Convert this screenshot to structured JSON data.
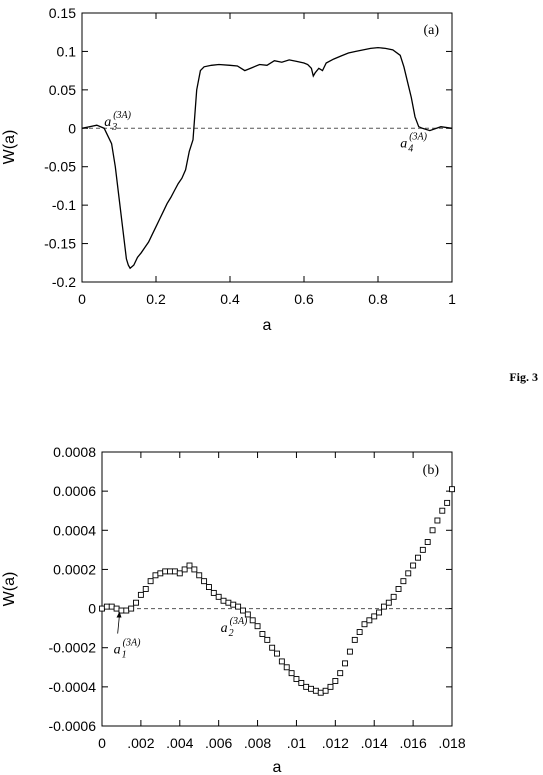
{
  "figure_caption": "Fig. 3",
  "chart_data": [
    {
      "type": "line",
      "panel_label": "(a)",
      "xlabel": "a",
      "ylabel": "W(a)",
      "xlim": [
        0,
        1
      ],
      "ylim": [
        -0.2,
        0.15
      ],
      "xticks": [
        0,
        0.2,
        0.4,
        0.6,
        0.8,
        1
      ],
      "xtick_labels": [
        "0",
        "0.2",
        "0.4",
        "0.6",
        "0.8",
        "1"
      ],
      "yticks": [
        -0.2,
        -0.15,
        -0.1,
        -0.05,
        0,
        0.05,
        0.1,
        0.15
      ],
      "ytick_labels": [
        "-0.2",
        "-0.15",
        "-0.1",
        "-0.05",
        "0",
        "0.05",
        "0.1",
        "0.15"
      ],
      "zero_line": true,
      "grid": false,
      "series": [
        {
          "style": "solid",
          "x": [
            0.0,
            0.02,
            0.04,
            0.06,
            0.08,
            0.09,
            0.1,
            0.11,
            0.12,
            0.125,
            0.13,
            0.14,
            0.15,
            0.16,
            0.17,
            0.18,
            0.19,
            0.2,
            0.21,
            0.22,
            0.23,
            0.24,
            0.25,
            0.26,
            0.27,
            0.28,
            0.29,
            0.3,
            0.31,
            0.32,
            0.33,
            0.35,
            0.37,
            0.4,
            0.42,
            0.44,
            0.46,
            0.48,
            0.5,
            0.52,
            0.54,
            0.56,
            0.58,
            0.6,
            0.61,
            0.62,
            0.625,
            0.63,
            0.64,
            0.65,
            0.66,
            0.68,
            0.7,
            0.72,
            0.74,
            0.76,
            0.78,
            0.8,
            0.82,
            0.84,
            0.86,
            0.87,
            0.88,
            0.89,
            0.9,
            0.91,
            0.92,
            0.94,
            0.97,
            1.0
          ],
          "y": [
            0.0,
            0.002,
            0.004,
            0.0,
            -0.02,
            -0.05,
            -0.09,
            -0.13,
            -0.17,
            -0.178,
            -0.182,
            -0.178,
            -0.168,
            -0.162,
            -0.155,
            -0.148,
            -0.138,
            -0.128,
            -0.118,
            -0.108,
            -0.098,
            -0.09,
            -0.081,
            -0.072,
            -0.065,
            -0.054,
            -0.03,
            -0.015,
            0.05,
            0.075,
            0.08,
            0.082,
            0.083,
            0.082,
            0.081,
            0.075,
            0.079,
            0.083,
            0.082,
            0.088,
            0.086,
            0.089,
            0.087,
            0.085,
            0.083,
            0.078,
            0.068,
            0.072,
            0.078,
            0.075,
            0.085,
            0.09,
            0.094,
            0.098,
            0.1,
            0.102,
            0.104,
            0.105,
            0.104,
            0.102,
            0.095,
            0.08,
            0.06,
            0.04,
            0.015,
            0.002,
            0.0,
            -0.003,
            0.002,
            0.0
          ]
        }
      ],
      "annotations": [
        {
          "text": "a",
          "sub": "3",
          "sup": "(3A)",
          "x": 0.06,
          "y": 0.003
        },
        {
          "text": "a",
          "sub": "4",
          "sup": "(3A)",
          "x": 0.86,
          "y": -0.025
        }
      ]
    },
    {
      "type": "scatter",
      "panel_label": "(b)",
      "xlabel": "a",
      "ylabel": "W(a)",
      "xlim": [
        0,
        0.018
      ],
      "ylim": [
        -0.0006,
        0.0008
      ],
      "xticks": [
        0,
        0.002,
        0.004,
        0.006,
        0.008,
        0.01,
        0.012,
        0.014,
        0.016,
        0.018
      ],
      "xtick_labels": [
        "0",
        ".002",
        ".004",
        ".006",
        ".008",
        ".01",
        ".012",
        ".014",
        ".016",
        ".018"
      ],
      "yticks": [
        -0.0006,
        -0.0004,
        -0.0002,
        0,
        0.0002,
        0.0004,
        0.0006,
        0.0008
      ],
      "ytick_labels": [
        "-0.0006",
        "-0.0004",
        "-0.0002",
        "0",
        "0.0002",
        "0.0004",
        "0.0006",
        "0.0008"
      ],
      "zero_line": true,
      "grid": false,
      "marker": "open-square",
      "series": [
        {
          "x": [
            0.0,
            0.00025,
            0.0005,
            0.00075,
            0.001,
            0.00125,
            0.0015,
            0.00175,
            0.002,
            0.00225,
            0.0025,
            0.00275,
            0.003,
            0.00325,
            0.0035,
            0.00375,
            0.004,
            0.00425,
            0.0045,
            0.00475,
            0.005,
            0.00525,
            0.0055,
            0.00575,
            0.006,
            0.00625,
            0.0065,
            0.00675,
            0.007,
            0.00725,
            0.0075,
            0.00775,
            0.008,
            0.00825,
            0.0085,
            0.00875,
            0.009,
            0.00925,
            0.0095,
            0.00975,
            0.01,
            0.01025,
            0.0105,
            0.01075,
            0.011,
            0.01125,
            0.0115,
            0.01175,
            0.012,
            0.01225,
            0.0125,
            0.01275,
            0.013,
            0.01325,
            0.0135,
            0.01375,
            0.014,
            0.01425,
            0.0145,
            0.01475,
            0.015,
            0.01525,
            0.0155,
            0.01575,
            0.016,
            0.01625,
            0.0165,
            0.01675,
            0.017,
            0.01725,
            0.0175,
            0.01775,
            0.018
          ],
          "y": [
            0.0,
            1e-05,
            1e-05,
            0.0,
            -1e-05,
            -1e-05,
            0.0,
            3e-05,
            7e-05,
            0.0001,
            0.00014,
            0.00017,
            0.00018,
            0.00019,
            0.00019,
            0.00019,
            0.00018,
            0.0002,
            0.00022,
            0.0002,
            0.00017,
            0.00014,
            0.00011,
            8e-05,
            6e-05,
            4e-05,
            3e-05,
            2e-05,
            1e-05,
            -1e-05,
            -3e-05,
            -6e-05,
            -9e-05,
            -0.00013,
            -0.00016,
            -0.0002,
            -0.00023,
            -0.00027,
            -0.0003,
            -0.00033,
            -0.00036,
            -0.00038,
            -0.0004,
            -0.00041,
            -0.00042,
            -0.00043,
            -0.00042,
            -0.0004,
            -0.00037,
            -0.00033,
            -0.00028,
            -0.00022,
            -0.00016,
            -0.00012,
            -8e-05,
            -6e-05,
            -4e-05,
            -2e-05,
            1e-05,
            3e-05,
            6e-05,
            0.0001,
            0.00014,
            0.00018,
            0.00022,
            0.00026,
            0.0003,
            0.00034,
            0.0004,
            0.00045,
            0.0005,
            0.00054,
            0.00061
          ]
        }
      ],
      "annotations": [
        {
          "text": "a",
          "sub": "1",
          "sup": "(3A)",
          "x": 0.0006,
          "y": -0.00023,
          "arrow_to": [
            0.0009,
            -1e-05
          ]
        },
        {
          "text": "a",
          "sub": "2",
          "sup": "(3A)",
          "x": 0.0061,
          "y": -0.00012
        }
      ]
    }
  ]
}
